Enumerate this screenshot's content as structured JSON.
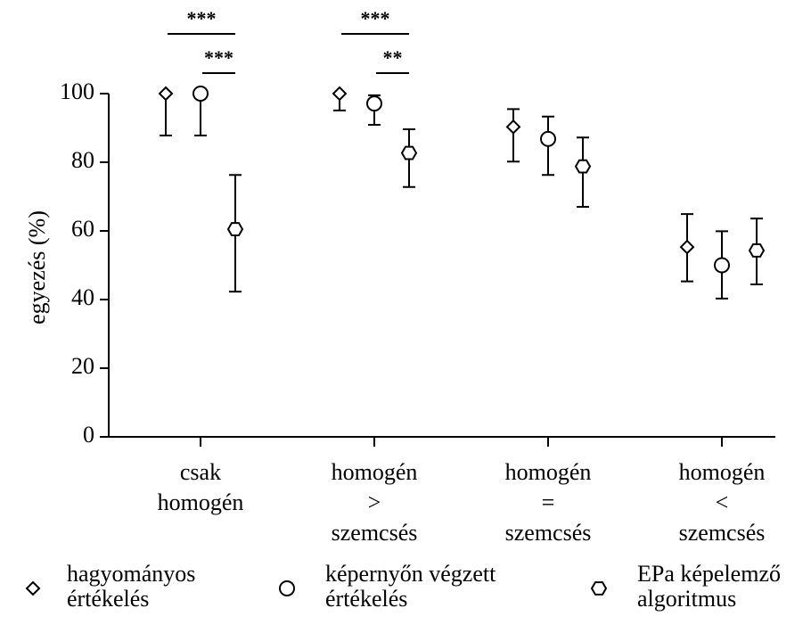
{
  "chart_data": {
    "type": "errorbar",
    "ylabel": "egyezés (%)",
    "categories": [
      "csak\nhomogén",
      "homogén\n>\nszemcsés",
      "homogén\n=\nszemcsés",
      "homogén\n<\nszemcsés"
    ],
    "ylim": [
      0,
      100
    ],
    "yticks": [
      0,
      20,
      40,
      60,
      80,
      100
    ],
    "series": [
      {
        "name": "hagyományos értékelés",
        "marker": "diamond",
        "color": "#000000",
        "values": [
          100,
          100,
          90.3,
          55.3
        ],
        "lower": [
          87.8,
          95.1,
          80.2,
          45.3
        ],
        "upper": [
          100,
          100,
          95.5,
          64.9
        ]
      },
      {
        "name": "képernyőn végzett értékelés",
        "marker": "circle",
        "color": "#000000",
        "values": [
          100,
          97.1,
          86.8,
          50
        ],
        "lower": [
          87.8,
          90.9,
          76.3,
          40.3
        ],
        "upper": [
          100,
          99.5,
          93.3,
          59.9
        ]
      },
      {
        "name": "EPa képelemző algoritmus",
        "marker": "hexagon",
        "color": "#000000",
        "values": [
          60.5,
          82.7,
          78.8,
          54.3
        ],
        "lower": [
          42.3,
          72.8,
          67,
          44.4
        ],
        "upper": [
          76.3,
          89.6,
          87.2,
          63.6
        ]
      }
    ],
    "comparisons": [
      {
        "category": 0,
        "from": 0,
        "to": 2,
        "label": "***"
      },
      {
        "category": 0,
        "from": 1,
        "to": 2,
        "label": "***"
      },
      {
        "category": 1,
        "from": 0,
        "to": 2,
        "label": "***"
      },
      {
        "category": 1,
        "from": 1,
        "to": 2,
        "label": "**"
      }
    ]
  }
}
